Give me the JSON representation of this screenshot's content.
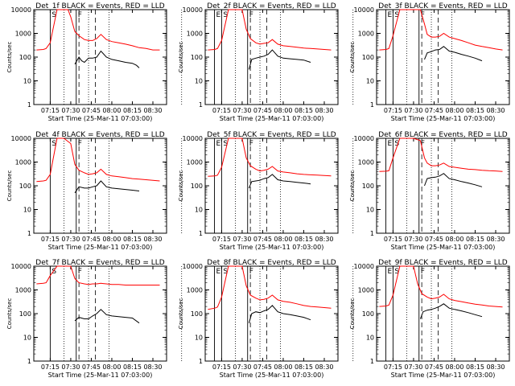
{
  "figure": {
    "colors": {
      "events": "#000000",
      "lld": "#ff0000",
      "axes": "#000000"
    },
    "ylabel": "Counts/sec",
    "xlabel": "Start Time (25-Mar-11 07:03:00)",
    "xticks": [
      "07:15",
      "07:30",
      "07:45",
      "08:00",
      "08:15",
      "08:30"
    ],
    "yticks": [
      "1",
      "10",
      "100",
      "1000",
      "10000"
    ],
    "markers": [
      "S",
      "F",
      "E"
    ]
  },
  "chart_data": [
    {
      "type": "line",
      "title": "Det_1f BLACK = Events, RED = LLD",
      "xlabel": "Start Time (25-Mar-11 07:03:00)",
      "ylabel": "Counts/sec",
      "yscale": "log",
      "ylim": [
        1,
        10000
      ],
      "xlim": [
        "07:03",
        "08:40"
      ],
      "series": [
        {
          "name": "Events",
          "color": "#000000",
          "x": [
            "07:05",
            "07:10",
            "07:15",
            "07:20",
            "07:25",
            "07:30",
            "07:33",
            "07:36",
            "07:38",
            "07:40",
            "07:43",
            "07:46",
            "07:49",
            "07:52",
            "07:56",
            "08:00",
            "08:05",
            "08:10",
            "08:15",
            "08:18",
            "08:20"
          ],
          "values": [
            null,
            null,
            null,
            null,
            null,
            null,
            50,
            100,
            70,
            60,
            90,
            90,
            100,
            180,
            100,
            80,
            70,
            60,
            55,
            45,
            35
          ]
        },
        {
          "name": "LLD",
          "color": "#ff0000",
          "x": [
            "07:05",
            "07:10",
            "07:12",
            "07:15",
            "07:20",
            "07:25",
            "07:28",
            "07:30",
            "07:33",
            "07:36",
            "07:40",
            "07:43",
            "07:46",
            "07:49",
            "07:52",
            "07:56",
            "08:00",
            "08:05",
            "08:10",
            "08:15",
            "08:20",
            "08:25",
            "08:30",
            "08:35"
          ],
          "values": [
            200,
            210,
            230,
            400,
            10000,
            10000,
            10000,
            5000,
            1200,
            800,
            550,
            500,
            500,
            600,
            900,
            550,
            450,
            400,
            350,
            300,
            250,
            230,
            200,
            200
          ]
        }
      ]
    },
    {
      "type": "line",
      "title": "Det_2f BLACK = Events, RED = LLD",
      "xlabel": "Start Time (25-Mar-11 07:03:00)",
      "ylabel": "Counts/sec",
      "yscale": "log",
      "ylim": [
        1,
        10000
      ],
      "xlim": [
        "07:03",
        "08:40"
      ],
      "series": [
        {
          "name": "Events",
          "color": "#000000",
          "x": [
            "07:35",
            "07:37",
            "07:40",
            "07:43",
            "07:46",
            "07:49",
            "07:52",
            "07:56",
            "08:00",
            "08:05",
            "08:10",
            "08:15",
            "08:20"
          ],
          "values": [
            30,
            80,
            90,
            100,
            110,
            130,
            200,
            110,
            90,
            85,
            80,
            75,
            60
          ]
        },
        {
          "name": "LLD",
          "color": "#ff0000",
          "x": [
            "07:05",
            "07:10",
            "07:12",
            "07:15",
            "07:20",
            "07:25",
            "07:30",
            "07:33",
            "07:36",
            "07:40",
            "07:43",
            "07:46",
            "07:49",
            "07:52",
            "07:56",
            "08:00",
            "08:05",
            "08:10",
            "08:15",
            "08:20",
            "08:25",
            "08:30",
            "08:35"
          ],
          "values": [
            200,
            210,
            230,
            500,
            10000,
            10000,
            10000,
            1500,
            600,
            400,
            350,
            380,
            400,
            550,
            350,
            300,
            280,
            260,
            240,
            230,
            220,
            210,
            200
          ]
        }
      ]
    },
    {
      "type": "line",
      "title": "Det_3f BLACK = Events, RED = LLD",
      "xlabel": "Start Time (25-Mar-11 07:03:00)",
      "ylabel": "Counts/sec",
      "yscale": "log",
      "ylim": [
        1,
        10000
      ],
      "xlim": [
        "07:03",
        "08:40"
      ],
      "series": [
        {
          "name": "Events",
          "color": "#000000",
          "x": [
            "07:38",
            "07:40",
            "07:43",
            "07:46",
            "07:49",
            "07:52",
            "07:56",
            "08:00",
            "08:05",
            "08:10",
            "08:15",
            "08:20"
          ],
          "values": [
            80,
            150,
            170,
            200,
            210,
            280,
            180,
            160,
            130,
            110,
            90,
            70
          ]
        },
        {
          "name": "LLD",
          "color": "#ff0000",
          "x": [
            "07:05",
            "07:10",
            "07:12",
            "07:15",
            "07:20",
            "07:25",
            "07:30",
            "07:35",
            "07:38",
            "07:40",
            "07:43",
            "07:46",
            "07:49",
            "07:52",
            "07:56",
            "08:00",
            "08:05",
            "08:10",
            "08:15",
            "08:20",
            "08:25",
            "08:30",
            "08:35"
          ],
          "values": [
            200,
            210,
            230,
            800,
            10000,
            10000,
            10000,
            10000,
            2500,
            900,
            700,
            700,
            750,
            1000,
            700,
            600,
            500,
            400,
            320,
            280,
            250,
            220,
            200
          ]
        }
      ]
    },
    {
      "type": "line",
      "title": "Det_4f BLACK = Events, RED = LLD",
      "xlabel": "Start Time (25-Mar-11 07:03:00)",
      "ylabel": "Counts/sec",
      "yscale": "log",
      "ylim": [
        1,
        10000
      ],
      "xlim": [
        "07:03",
        "08:40"
      ],
      "series": [
        {
          "name": "Events",
          "color": "#000000",
          "x": [
            "07:33",
            "07:36",
            "07:40",
            "07:43",
            "07:46",
            "07:49",
            "07:52",
            "07:56",
            "08:00",
            "08:05",
            "08:10",
            "08:15",
            "08:20"
          ],
          "values": [
            50,
            90,
            80,
            80,
            90,
            100,
            160,
            90,
            80,
            75,
            70,
            65,
            60
          ]
        },
        {
          "name": "LLD",
          "color": "#ff0000",
          "x": [
            "07:05",
            "07:10",
            "07:12",
            "07:15",
            "07:20",
            "07:25",
            "07:30",
            "07:33",
            "07:36",
            "07:40",
            "07:43",
            "07:46",
            "07:49",
            "07:52",
            "07:56",
            "08:00",
            "08:05",
            "08:10",
            "08:15",
            "08:20",
            "08:25",
            "08:30",
            "08:35"
          ],
          "values": [
            150,
            160,
            170,
            300,
            10000,
            10000,
            6000,
            800,
            450,
            350,
            300,
            320,
            350,
            500,
            300,
            260,
            240,
            220,
            200,
            190,
            180,
            170,
            160
          ]
        }
      ]
    },
    {
      "type": "line",
      "title": "Det_5f BLACK = Events, RED = LLD",
      "xlabel": "Start Time (25-Mar-11 07:03:00)",
      "ylabel": "Counts/sec",
      "yscale": "log",
      "ylim": [
        1,
        10000
      ],
      "xlim": [
        "07:03",
        "08:40"
      ],
      "series": [
        {
          "name": "Events",
          "color": "#000000",
          "x": [
            "07:35",
            "07:37",
            "07:40",
            "07:43",
            "07:46",
            "07:49",
            "07:52",
            "07:56",
            "08:00",
            "08:05",
            "08:10",
            "08:15",
            "08:20"
          ],
          "values": [
            80,
            150,
            160,
            170,
            200,
            220,
            300,
            180,
            160,
            150,
            140,
            130,
            120
          ]
        },
        {
          "name": "LLD",
          "color": "#ff0000",
          "x": [
            "07:05",
            "07:10",
            "07:12",
            "07:15",
            "07:20",
            "07:25",
            "07:30",
            "07:33",
            "07:36",
            "07:40",
            "07:43",
            "07:46",
            "07:49",
            "07:52",
            "07:56",
            "08:00",
            "08:05",
            "08:10",
            "08:15",
            "08:20",
            "08:25",
            "08:30",
            "08:35"
          ],
          "values": [
            250,
            260,
            280,
            600,
            10000,
            10000,
            10000,
            1500,
            700,
            500,
            420,
            450,
            500,
            650,
            420,
            380,
            350,
            320,
            300,
            290,
            280,
            270,
            260
          ]
        }
      ]
    },
    {
      "type": "line",
      "title": "Det_6f BLACK = Events, RED = LLD",
      "xlabel": "Start Time (25-Mar-11 07:03:00)",
      "ylabel": "Counts/sec",
      "yscale": "log",
      "ylim": [
        1,
        10000
      ],
      "xlim": [
        "07:03",
        "08:40"
      ],
      "series": [
        {
          "name": "Events",
          "color": "#000000",
          "x": [
            "07:38",
            "07:40",
            "07:43",
            "07:46",
            "07:49",
            "07:52",
            "07:56",
            "08:00",
            "08:05",
            "08:10",
            "08:15",
            "08:20"
          ],
          "values": [
            100,
            200,
            220,
            230,
            260,
            330,
            200,
            180,
            150,
            130,
            110,
            90
          ]
        },
        {
          "name": "LLD",
          "color": "#ff0000",
          "x": [
            "07:05",
            "07:10",
            "07:12",
            "07:15",
            "07:20",
            "07:25",
            "07:30",
            "07:35",
            "07:38",
            "07:40",
            "07:43",
            "07:46",
            "07:49",
            "07:52",
            "07:56",
            "08:00",
            "08:05",
            "08:10",
            "08:15",
            "08:20",
            "08:25",
            "08:30",
            "08:35"
          ],
          "values": [
            400,
            410,
            430,
            1500,
            10000,
            10000,
            10000,
            8000,
            1500,
            900,
            700,
            700,
            750,
            900,
            650,
            600,
            550,
            500,
            480,
            450,
            430,
            420,
            400
          ]
        }
      ]
    },
    {
      "type": "line",
      "title": "Det_7f BLACK = Events, RED = LLD",
      "xlabel": "Start Time (25-Mar-11 07:03:00)",
      "ylabel": "Counts/sec",
      "yscale": "log",
      "ylim": [
        1,
        10000
      ],
      "xlim": [
        "07:03",
        "08:40"
      ],
      "series": [
        {
          "name": "Events",
          "color": "#000000",
          "x": [
            "07:33",
            "07:36",
            "07:40",
            "07:43",
            "07:46",
            "07:49",
            "07:52",
            "07:56",
            "08:00",
            "08:05",
            "08:10",
            "08:15",
            "08:20"
          ],
          "values": [
            50,
            70,
            60,
            60,
            80,
            100,
            150,
            90,
            80,
            75,
            70,
            65,
            40
          ]
        },
        {
          "name": "LLD",
          "color": "#ff0000",
          "x": [
            "07:05",
            "07:10",
            "07:12",
            "07:15",
            "07:20",
            "07:25",
            "07:30",
            "07:33",
            "07:36",
            "07:40",
            "07:43",
            "07:46",
            "07:49",
            "07:52",
            "07:56",
            "08:00",
            "08:05",
            "08:10",
            "08:15",
            "08:20",
            "08:25",
            "08:30",
            "08:35"
          ],
          "values": [
            1800,
            1900,
            2000,
            4000,
            10000,
            10000,
            10000,
            3000,
            2000,
            1800,
            1700,
            1800,
            1800,
            1900,
            1800,
            1700,
            1700,
            1600,
            1600,
            1600,
            1600,
            1600,
            1600
          ]
        }
      ]
    },
    {
      "type": "line",
      "title": "Det_8f BLACK = Events, RED = LLD",
      "xlabel": "Start Time (25-Mar-11 07:03:00)",
      "ylabel": "Counts/sec",
      "yscale": "log",
      "ylim": [
        1,
        10000
      ],
      "xlim": [
        "07:03",
        "08:40"
      ],
      "series": [
        {
          "name": "Events",
          "color": "#000000",
          "x": [
            "07:35",
            "07:37",
            "07:40",
            "07:43",
            "07:46",
            "07:49",
            "07:52",
            "07:56",
            "08:00",
            "08:05",
            "08:10",
            "08:15",
            "08:20"
          ],
          "values": [
            40,
            100,
            120,
            110,
            130,
            150,
            220,
            120,
            100,
            90,
            80,
            70,
            55
          ]
        },
        {
          "name": "LLD",
          "color": "#ff0000",
          "x": [
            "07:05",
            "07:10",
            "07:12",
            "07:15",
            "07:20",
            "07:25",
            "07:30",
            "07:33",
            "07:36",
            "07:40",
            "07:43",
            "07:46",
            "07:49",
            "07:52",
            "07:56",
            "08:00",
            "08:05",
            "08:10",
            "08:15",
            "08:20",
            "08:25",
            "08:30",
            "08:35"
          ],
          "values": [
            150,
            170,
            190,
            500,
            10000,
            10000,
            10000,
            1500,
            600,
            450,
            380,
            400,
            450,
            600,
            380,
            330,
            300,
            260,
            220,
            200,
            190,
            180,
            170
          ]
        }
      ]
    },
    {
      "type": "line",
      "title": "Det_9f BLACK = Events, RED = LLD",
      "xlabel": "Start Time (25-Mar-11 07:03:00)",
      "ylabel": "Counts/sec",
      "yscale": "log",
      "ylim": [
        1,
        10000
      ],
      "xlim": [
        "07:03",
        "08:40"
      ],
      "series": [
        {
          "name": "Events",
          "color": "#000000",
          "x": [
            "07:35",
            "07:37",
            "07:40",
            "07:43",
            "07:46",
            "07:49",
            "07:52",
            "07:56",
            "08:00",
            "08:05",
            "08:10",
            "08:15",
            "08:20"
          ],
          "values": [
            60,
            120,
            140,
            150,
            170,
            200,
            260,
            170,
            150,
            130,
            110,
            90,
            75
          ]
        },
        {
          "name": "LLD",
          "color": "#ff0000",
          "x": [
            "07:05",
            "07:10",
            "07:12",
            "07:15",
            "07:20",
            "07:25",
            "07:30",
            "07:33",
            "07:36",
            "07:40",
            "07:43",
            "07:46",
            "07:49",
            "07:52",
            "07:56",
            "08:00",
            "08:05",
            "08:10",
            "08:15",
            "08:20",
            "08:25",
            "08:30",
            "08:35"
          ],
          "values": [
            200,
            210,
            230,
            600,
            10000,
            10000,
            10000,
            1800,
            700,
            500,
            420,
            450,
            500,
            650,
            420,
            360,
            320,
            280,
            250,
            230,
            210,
            200,
            190
          ]
        }
      ]
    }
  ]
}
